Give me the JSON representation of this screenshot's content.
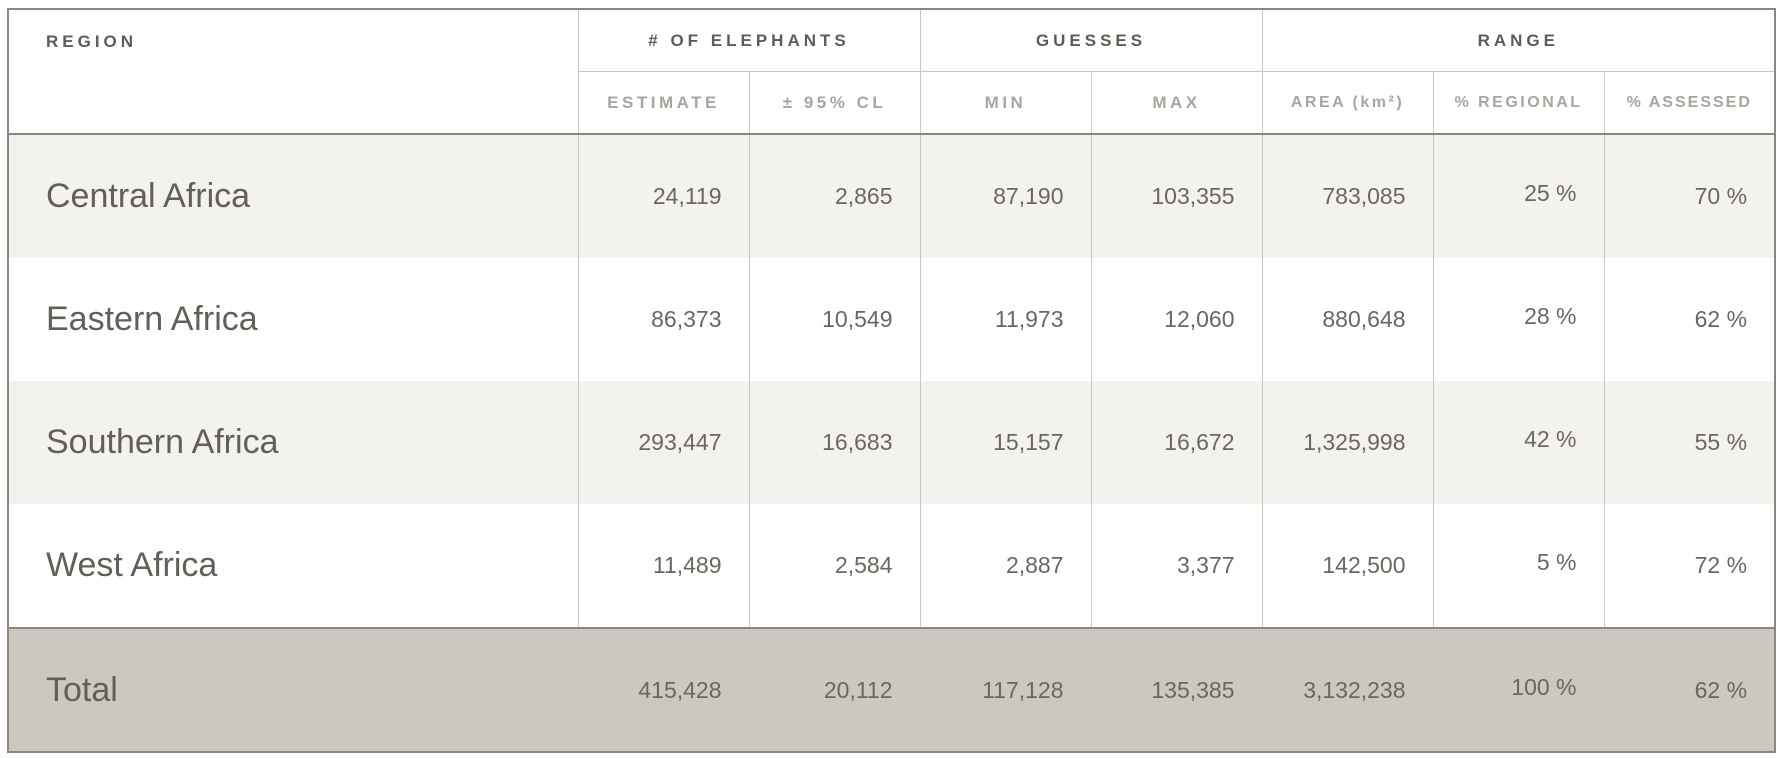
{
  "header": {
    "region_label": "REGION",
    "groups": [
      {
        "label": "# OF ELEPHANTS"
      },
      {
        "label": "GUESSES"
      },
      {
        "label": "RANGE"
      }
    ],
    "subheaders": [
      "ESTIMATE",
      "± 95% CL",
      "MIN",
      "MAX",
      "AREA (km²)",
      "% REGIONAL",
      "% ASSESSED"
    ]
  },
  "rows": [
    {
      "region": "Central Africa",
      "estimate": "24,119",
      "cl": "2,865",
      "min": "87,190",
      "max": "103,355",
      "area": "783,085",
      "regional": "25 %",
      "assessed": "70 %"
    },
    {
      "region": "Eastern Africa",
      "estimate": "86,373",
      "cl": "10,549",
      "min": "11,973",
      "max": "12,060",
      "area": "880,648",
      "regional": "28 %",
      "assessed": "62 %"
    },
    {
      "region": "Southern Africa",
      "estimate": "293,447",
      "cl": "16,683",
      "min": "15,157",
      "max": "16,672",
      "area": "1,325,998",
      "regional": "42 %",
      "assessed": "55 %"
    },
    {
      "region": "West Africa",
      "estimate": "11,489",
      "cl": "2,584",
      "min": "2,887",
      "max": "3,377",
      "area": "142,500",
      "regional": "5 %",
      "assessed": "72 %"
    }
  ],
  "total": {
    "region": "Total",
    "estimate": "415,428",
    "cl": "20,112",
    "min": "117,128",
    "max": "135,385",
    "area": "3,132,238",
    "regional": "100 %",
    "assessed": "62 %"
  },
  "colors": {
    "alt_row": "#f3f2ef",
    "total_row": "#ccc7c1",
    "border": "#8b8780",
    "text": "#6b6760"
  }
}
